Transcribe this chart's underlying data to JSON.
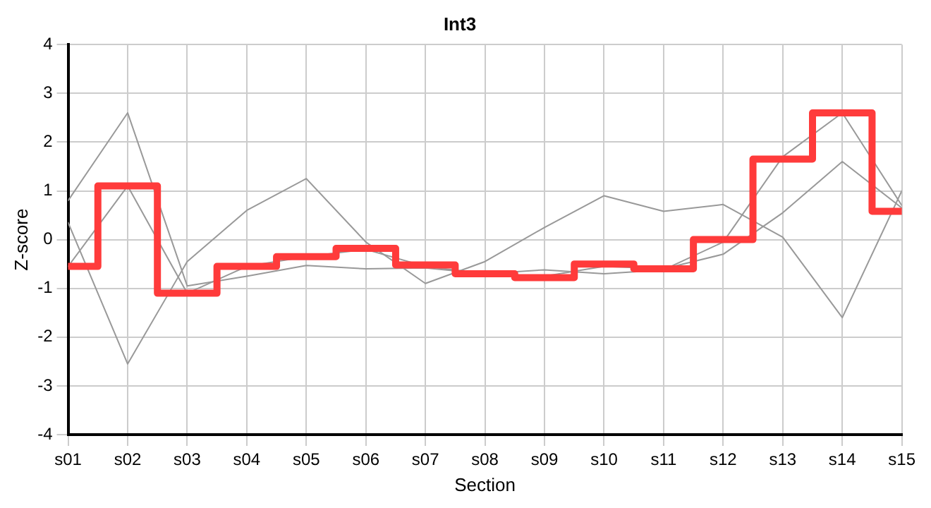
{
  "chart_data": {
    "type": "line",
    "title": "Int3",
    "xlabel": "Section",
    "ylabel": "Z-score",
    "categories": [
      "s01",
      "s02",
      "s03",
      "s04",
      "s05",
      "s06",
      "s07",
      "s08",
      "s09",
      "s10",
      "s11",
      "s12",
      "s13",
      "s14",
      "s15"
    ],
    "series": [
      {
        "color": "#999999",
        "values": [
          0.8,
          2.6,
          -0.95,
          -0.75,
          -0.53,
          -0.6,
          -0.58,
          -0.7,
          -0.62,
          -0.7,
          -0.62,
          -0.05,
          1.7,
          2.6,
          0.7
        ]
      },
      {
        "color": "#999999",
        "values": [
          0.35,
          -2.55,
          -0.45,
          0.6,
          1.25,
          -0.05,
          -0.9,
          -0.45,
          0.25,
          0.9,
          0.58,
          0.72,
          0.05,
          -1.6,
          1.0
        ]
      },
      {
        "color": "#999999",
        "values": [
          -0.55,
          1.1,
          -1.1,
          -0.55,
          -0.35,
          -0.2,
          -0.55,
          -0.7,
          -0.75,
          -0.55,
          -0.6,
          -0.3,
          0.55,
          1.6,
          0.65
        ]
      },
      {
        "type": "step",
        "color": "#ff3b3b",
        "values": [
          -0.55,
          1.1,
          -1.1,
          -0.55,
          -0.35,
          -0.18,
          -0.52,
          -0.7,
          -0.78,
          -0.5,
          -0.6,
          0,
          1.65,
          2.6,
          0.58
        ]
      }
    ],
    "ylim": [
      -4,
      4
    ],
    "yticks": [
      -4,
      -3,
      -2,
      -1,
      0,
      1,
      2,
      3,
      4
    ],
    "grid": true,
    "legend": false,
    "marker": "none",
    "line_style": "solid"
  }
}
